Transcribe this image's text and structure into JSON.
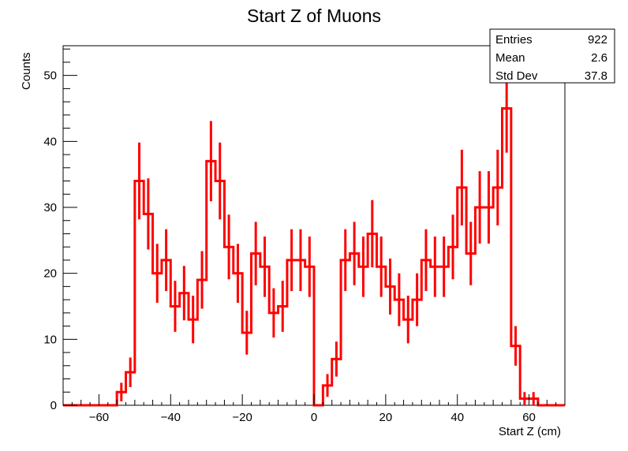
{
  "chart_data": {
    "type": "histogram",
    "title": "Start Z of Muons",
    "xlabel": "Start Z (cm)",
    "ylabel": "Counts",
    "xlim": [
      -70,
      70
    ],
    "ylim": [
      0,
      54.5
    ],
    "bin_width": 2.5,
    "bin_start": -70,
    "line_color": "#ff0000",
    "values": [
      0,
      0,
      0,
      0,
      0,
      0,
      2,
      5,
      34,
      29,
      20,
      22,
      15,
      17,
      13,
      19,
      37,
      34,
      24,
      20,
      11,
      23,
      21,
      14,
      15,
      22,
      22,
      21,
      0,
      3,
      7,
      22,
      23,
      21,
      26,
      21,
      18,
      16,
      13,
      16,
      22,
      21,
      21,
      24,
      33,
      23,
      30,
      30,
      33,
      45,
      9,
      1,
      1,
      0,
      0,
      0
    ],
    "errors": [
      0,
      0,
      0,
      0,
      0,
      0,
      1.41,
      2.24,
      5.83,
      5.39,
      4.47,
      4.69,
      3.87,
      4.12,
      3.61,
      4.36,
      6.08,
      5.83,
      4.9,
      4.47,
      3.32,
      4.8,
      4.58,
      3.74,
      3.87,
      4.69,
      4.69,
      4.58,
      0,
      1.73,
      2.65,
      4.69,
      4.8,
      4.58,
      5.1,
      4.58,
      4.24,
      4,
      3.61,
      4,
      4.69,
      4.58,
      4.58,
      4.9,
      5.74,
      4.8,
      5.48,
      5.48,
      5.74,
      6.71,
      3,
      1,
      1,
      0,
      0,
      0
    ],
    "x_ticks": [
      "−60",
      "−40",
      "−20",
      "0",
      "20",
      "40",
      "60"
    ],
    "x_tick_values": [
      -60,
      -40,
      -20,
      0,
      20,
      40,
      60
    ],
    "y_ticks": [
      "0",
      "10",
      "20",
      "30",
      "40",
      "50"
    ],
    "y_tick_values": [
      0,
      10,
      20,
      30,
      40,
      50
    ],
    "legend": "top-right",
    "grid": false,
    "stats": [
      {
        "label": "Entries",
        "value": "922"
      },
      {
        "label": "Mean",
        "value": "2.6"
      },
      {
        "label": "Std Dev",
        "value": "37.8"
      }
    ]
  }
}
